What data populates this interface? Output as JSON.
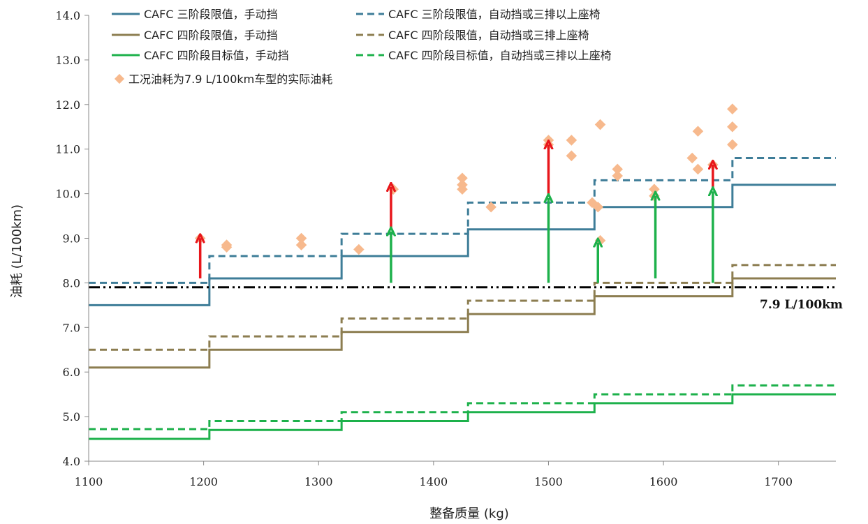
{
  "chart_data": {
    "type": "line",
    "xlabel": "整备质量 (kg)",
    "ylabel": "油耗 (L/100km)",
    "xlim": [
      1100,
      1750
    ],
    "ylim": [
      4.0,
      14.0
    ],
    "x_ticks": [
      "1100",
      "1200",
      "1300",
      "1400",
      "1500",
      "1600",
      "1700"
    ],
    "y_ticks": [
      "4.0",
      "5.0",
      "6.0",
      "7.0",
      "8.0",
      "9.0",
      "10.0",
      "11.0",
      "12.0",
      "13.0",
      "14.0"
    ],
    "legend_position": "top",
    "series": [
      {
        "key": "s3m",
        "name": "CAFC 三阶段限值，手动挡",
        "style": "step",
        "dash": "solid",
        "color": "#3e7d98",
        "breaks": [
          1100,
          1205,
          1320,
          1430,
          1540,
          1660,
          1750
        ],
        "values": [
          7.5,
          8.1,
          8.6,
          9.2,
          9.7,
          10.2
        ]
      },
      {
        "key": "s3a",
        "name": "CAFC 三阶段限值，自动挡或三排以上座椅",
        "style": "step",
        "dash": "dashed",
        "color": "#3e7d98",
        "breaks": [
          1100,
          1205,
          1320,
          1430,
          1540,
          1660,
          1750
        ],
        "values": [
          8.0,
          8.6,
          9.1,
          9.8,
          10.3,
          10.8
        ]
      },
      {
        "key": "s4m",
        "name": "CAFC 四阶段限值，手动挡",
        "style": "step",
        "dash": "solid",
        "color": "#8c7d50",
        "breaks": [
          1100,
          1205,
          1320,
          1430,
          1540,
          1660,
          1750
        ],
        "values": [
          6.1,
          6.5,
          6.9,
          7.3,
          7.7,
          8.1
        ]
      },
      {
        "key": "s4a",
        "name": "CAFC 四阶段限值，自动挡或三排上座椅",
        "style": "step",
        "dash": "dashed",
        "color": "#8c7d50",
        "breaks": [
          1100,
          1205,
          1320,
          1430,
          1540,
          1660,
          1750
        ],
        "values": [
          6.5,
          6.8,
          7.2,
          7.6,
          8.0,
          8.4
        ]
      },
      {
        "key": "t4m",
        "name": "CAFC 四阶段目标值，手动挡",
        "style": "step",
        "dash": "solid",
        "color": "#1db14b",
        "breaks": [
          1100,
          1205,
          1320,
          1430,
          1540,
          1660,
          1750
        ],
        "values": [
          4.5,
          4.7,
          4.9,
          5.1,
          5.3,
          5.5
        ]
      },
      {
        "key": "t4a",
        "name": "CAFC 四阶段目标值，自动挡或三排以上座椅",
        "style": "step",
        "dash": "dashed",
        "color": "#1db14b",
        "breaks": [
          1100,
          1205,
          1320,
          1430,
          1540,
          1660,
          1750
        ],
        "values": [
          4.72,
          4.9,
          5.1,
          5.3,
          5.5,
          5.7
        ]
      }
    ],
    "scatter": {
      "name": "工况油耗为7.9 L/100km车型的实际油耗",
      "color": "#f7b98d",
      "x": [
        1197,
        1220,
        1220,
        1285,
        1285,
        1335,
        1365,
        1425,
        1425,
        1425,
        1450,
        1500,
        1500,
        1520,
        1520,
        1538,
        1543,
        1545,
        1545,
        1560,
        1560,
        1592,
        1592,
        1625,
        1630,
        1630,
        1643,
        1660,
        1660,
        1660
      ],
      "y": [
        9.0,
        8.85,
        8.8,
        9.0,
        8.85,
        8.75,
        10.1,
        10.35,
        10.2,
        10.1,
        9.7,
        11.2,
        11.1,
        11.2,
        10.85,
        9.8,
        9.7,
        11.55,
        8.95,
        10.55,
        10.4,
        10.1,
        9.95,
        10.8,
        11.4,
        10.55,
        10.65,
        11.9,
        11.5,
        11.1
      ]
    },
    "reference_line": {
      "y": 7.9,
      "label": "7.9 L/100km",
      "color": "#000000",
      "dash": "dashdot"
    },
    "arrows": [
      {
        "x": 1197,
        "y_from": 8.1,
        "y_to": 9.05,
        "color": "#e8161b"
      },
      {
        "x": 1363,
        "y_from": 9.2,
        "y_to": 10.2,
        "color": "#e8161b"
      },
      {
        "x": 1363,
        "y_from": 8.0,
        "y_to": 9.2,
        "color": "#1db14b"
      },
      {
        "x": 1500,
        "y_from": 9.95,
        "y_to": 11.15,
        "color": "#e8161b"
      },
      {
        "x": 1500,
        "y_from": 8.0,
        "y_to": 9.95,
        "color": "#1db14b"
      },
      {
        "x": 1543,
        "y_from": 8.0,
        "y_to": 8.95,
        "color": "#1db14b"
      },
      {
        "x": 1593,
        "y_from": 8.1,
        "y_to": 10.0,
        "color": "#1db14b"
      },
      {
        "x": 1643,
        "y_from": 10.1,
        "y_to": 10.7,
        "color": "#e8161b"
      },
      {
        "x": 1643,
        "y_from": 8.0,
        "y_to": 10.1,
        "color": "#1db14b"
      }
    ],
    "grid": false
  }
}
